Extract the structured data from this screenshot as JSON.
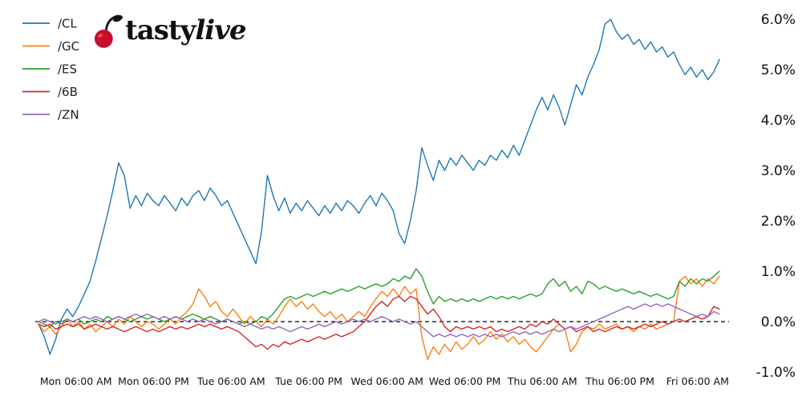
{
  "logo": {
    "brand_tasty": "tasty",
    "brand_live": "live",
    "cherry_color": "#c8102e",
    "text_color": "#111111"
  },
  "chart_data": {
    "type": "line",
    "title": "",
    "xlabel": "",
    "ylabel": "",
    "ylim": [
      -1.3,
      6.35
    ],
    "grid": false,
    "legend_position": "top-left",
    "zero_line": {
      "value": 0,
      "style": "dashed",
      "color": "#000000"
    },
    "x_tick_labels": [
      "Mon 06:00 AM",
      "Mon 06:00 PM",
      "Tue 06:00 AM",
      "Tue 06:00 PM",
      "Wed 06:00 AM",
      "Wed 06:00 PM",
      "Thu 06:00 AM",
      "Thu 06:00 PM",
      "Fri 06:00 AM"
    ],
    "x_tick_positions": [
      0.055,
      0.169,
      0.283,
      0.397,
      0.512,
      0.626,
      0.74,
      0.854,
      0.968
    ],
    "y_ticks": [
      6,
      5,
      4,
      3,
      2,
      1,
      0,
      -1
    ],
    "y_tick_labels": [
      "6.0%",
      "5.0%",
      "4.0%",
      "3.0%",
      "2.0%",
      "1.0%",
      "0.0%",
      "-1.0%"
    ],
    "series": [
      {
        "name": "/CL",
        "color": "#1f77b4",
        "values": [
          -0.05,
          -0.3,
          -0.65,
          -0.35,
          0.05,
          0.25,
          0.1,
          0.3,
          0.55,
          0.8,
          1.2,
          1.65,
          2.1,
          2.6,
          3.15,
          2.9,
          2.25,
          2.5,
          2.3,
          2.55,
          2.4,
          2.3,
          2.5,
          2.35,
          2.2,
          2.45,
          2.3,
          2.5,
          2.6,
          2.4,
          2.65,
          2.5,
          2.3,
          2.4,
          2.15,
          1.9,
          1.65,
          1.4,
          1.15,
          1.8,
          2.9,
          2.5,
          2.2,
          2.45,
          2.15,
          2.35,
          2.2,
          2.4,
          2.25,
          2.1,
          2.3,
          2.15,
          2.35,
          2.2,
          2.4,
          2.3,
          2.15,
          2.35,
          2.5,
          2.3,
          2.55,
          2.4,
          2.2,
          1.75,
          1.55,
          2.0,
          2.6,
          3.45,
          3.1,
          2.8,
          3.2,
          3.0,
          3.25,
          3.1,
          3.3,
          3.15,
          3.0,
          3.2,
          3.1,
          3.3,
          3.2,
          3.4,
          3.25,
          3.5,
          3.3,
          3.6,
          3.9,
          4.2,
          4.45,
          4.2,
          4.5,
          4.25,
          3.9,
          4.3,
          4.7,
          4.5,
          4.85,
          5.1,
          5.4,
          5.9,
          6.0,
          5.75,
          5.6,
          5.7,
          5.5,
          5.6,
          5.4,
          5.55,
          5.35,
          5.45,
          5.25,
          5.35,
          5.1,
          4.9,
          5.05,
          4.85,
          5.0,
          4.8,
          4.95,
          5.2
        ]
      },
      {
        "name": "/GC",
        "color": "#ff7f0e",
        "values": [
          -0.05,
          -0.2,
          -0.1,
          -0.25,
          -0.1,
          0.05,
          -0.1,
          0.0,
          -0.15,
          -0.05,
          -0.2,
          -0.1,
          0.0,
          -0.1,
          0.05,
          -0.05,
          0.1,
          0.0,
          -0.1,
          0.0,
          -0.05,
          -0.15,
          -0.05,
          0.05,
          -0.05,
          0.1,
          0.2,
          0.35,
          0.65,
          0.5,
          0.3,
          0.4,
          0.2,
          0.1,
          0.25,
          0.1,
          -0.05,
          0.1,
          0.0,
          -0.1,
          0.05,
          -0.05,
          0.1,
          0.3,
          0.45,
          0.3,
          0.4,
          0.25,
          0.35,
          0.2,
          0.1,
          0.2,
          0.05,
          0.15,
          0.0,
          0.1,
          0.2,
          0.1,
          0.3,
          0.45,
          0.6,
          0.5,
          0.65,
          0.5,
          0.7,
          0.55,
          0.65,
          -0.3,
          -0.75,
          -0.5,
          -0.65,
          -0.45,
          -0.6,
          -0.4,
          -0.55,
          -0.45,
          -0.3,
          -0.45,
          -0.35,
          -0.2,
          -0.35,
          -0.25,
          -0.4,
          -0.3,
          -0.45,
          -0.35,
          -0.5,
          -0.6,
          -0.45,
          -0.3,
          -0.15,
          -0.05,
          -0.15,
          -0.6,
          -0.45,
          -0.2,
          -0.1,
          -0.15,
          -0.05,
          -0.15,
          -0.1,
          -0.05,
          -0.15,
          -0.1,
          -0.2,
          -0.1,
          -0.15,
          -0.05,
          -0.15,
          -0.1,
          -0.05,
          0.0,
          0.8,
          0.9,
          0.75,
          0.85,
          0.7,
          0.85,
          0.75,
          0.9
        ]
      },
      {
        "name": "/ES",
        "color": "#2ca02c",
        "values": [
          0.0,
          -0.05,
          -0.1,
          0.0,
          -0.05,
          0.05,
          0.0,
          0.05,
          -0.05,
          0.0,
          0.05,
          0.0,
          0.1,
          0.05,
          0.1,
          0.05,
          0.0,
          0.05,
          0.1,
          0.05,
          0.1,
          0.05,
          0.0,
          0.05,
          0.1,
          0.05,
          0.1,
          0.15,
          0.1,
          0.05,
          0.1,
          0.05,
          0.0,
          0.05,
          0.0,
          -0.05,
          0.0,
          -0.05,
          0.0,
          0.1,
          0.05,
          0.15,
          0.3,
          0.45,
          0.5,
          0.45,
          0.5,
          0.55,
          0.5,
          0.55,
          0.6,
          0.55,
          0.6,
          0.65,
          0.6,
          0.65,
          0.7,
          0.65,
          0.7,
          0.75,
          0.7,
          0.75,
          0.85,
          0.8,
          0.9,
          0.85,
          1.05,
          0.9,
          0.6,
          0.35,
          0.5,
          0.4,
          0.45,
          0.4,
          0.45,
          0.4,
          0.45,
          0.4,
          0.45,
          0.5,
          0.45,
          0.5,
          0.45,
          0.5,
          0.45,
          0.5,
          0.55,
          0.5,
          0.55,
          0.75,
          0.85,
          0.7,
          0.8,
          0.6,
          0.7,
          0.55,
          0.8,
          0.75,
          0.65,
          0.7,
          0.65,
          0.6,
          0.65,
          0.6,
          0.55,
          0.6,
          0.55,
          0.5,
          0.55,
          0.5,
          0.45,
          0.5,
          0.8,
          0.7,
          0.85,
          0.75,
          0.85,
          0.8,
          0.9,
          1.0
        ]
      },
      {
        "name": "/6B",
        "color": "#d62728",
        "values": [
          -0.05,
          -0.1,
          -0.05,
          -0.15,
          -0.1,
          -0.05,
          -0.1,
          -0.05,
          -0.15,
          -0.1,
          -0.05,
          -0.1,
          -0.15,
          -0.1,
          -0.15,
          -0.2,
          -0.15,
          -0.1,
          -0.15,
          -0.2,
          -0.15,
          -0.2,
          -0.15,
          -0.1,
          -0.15,
          -0.1,
          -0.15,
          -0.1,
          -0.05,
          -0.1,
          -0.05,
          -0.1,
          -0.15,
          -0.1,
          -0.15,
          -0.2,
          -0.3,
          -0.4,
          -0.5,
          -0.45,
          -0.55,
          -0.45,
          -0.5,
          -0.4,
          -0.45,
          -0.4,
          -0.35,
          -0.4,
          -0.35,
          -0.3,
          -0.35,
          -0.3,
          -0.25,
          -0.3,
          -0.25,
          -0.2,
          -0.1,
          0.0,
          0.15,
          0.3,
          0.4,
          0.3,
          0.45,
          0.5,
          0.4,
          0.5,
          0.45,
          0.3,
          0.15,
          0.25,
          0.1,
          -0.1,
          -0.2,
          -0.1,
          -0.15,
          -0.1,
          -0.15,
          -0.1,
          -0.15,
          -0.1,
          -0.2,
          -0.15,
          -0.2,
          -0.15,
          -0.1,
          -0.15,
          -0.05,
          -0.1,
          0.0,
          -0.05,
          0.05,
          -0.05,
          -0.15,
          -0.1,
          -0.2,
          -0.15,
          -0.1,
          -0.2,
          -0.15,
          -0.2,
          -0.15,
          -0.1,
          -0.15,
          -0.1,
          -0.15,
          -0.1,
          -0.05,
          -0.1,
          -0.05,
          0.0,
          -0.05,
          0.0,
          0.05,
          0.0,
          0.05,
          0.1,
          0.05,
          0.1,
          0.3,
          0.25
        ]
      },
      {
        "name": "/ZN",
        "color": "#9467bd",
        "values": [
          0.0,
          0.05,
          0.0,
          -0.05,
          0.0,
          0.05,
          0.0,
          0.05,
          0.1,
          0.05,
          0.1,
          0.05,
          0.0,
          0.05,
          0.1,
          0.05,
          0.1,
          0.15,
          0.1,
          0.15,
          0.1,
          0.05,
          0.1,
          0.05,
          0.1,
          0.05,
          0.0,
          0.05,
          0.0,
          0.05,
          0.0,
          -0.05,
          0.0,
          0.05,
          0.0,
          -0.05,
          -0.1,
          -0.05,
          -0.1,
          -0.15,
          -0.1,
          -0.15,
          -0.1,
          -0.15,
          -0.2,
          -0.15,
          -0.1,
          -0.15,
          -0.1,
          -0.05,
          -0.1,
          -0.05,
          0.0,
          -0.05,
          0.0,
          0.05,
          0.0,
          0.05,
          0.0,
          0.05,
          0.1,
          0.05,
          0.0,
          0.05,
          0.0,
          -0.05,
          0.0,
          -0.1,
          -0.2,
          -0.3,
          -0.25,
          -0.3,
          -0.25,
          -0.3,
          -0.25,
          -0.3,
          -0.25,
          -0.3,
          -0.25,
          -0.3,
          -0.25,
          -0.3,
          -0.25,
          -0.2,
          -0.25,
          -0.2,
          -0.25,
          -0.2,
          -0.25,
          -0.2,
          -0.15,
          -0.2,
          -0.15,
          -0.1,
          -0.15,
          -0.1,
          -0.05,
          0.0,
          0.05,
          0.1,
          0.15,
          0.2,
          0.25,
          0.3,
          0.25,
          0.3,
          0.35,
          0.3,
          0.35,
          0.3,
          0.35,
          0.3,
          0.25,
          0.2,
          0.15,
          0.1,
          0.15,
          0.1,
          0.2,
          0.15
        ]
      }
    ]
  }
}
